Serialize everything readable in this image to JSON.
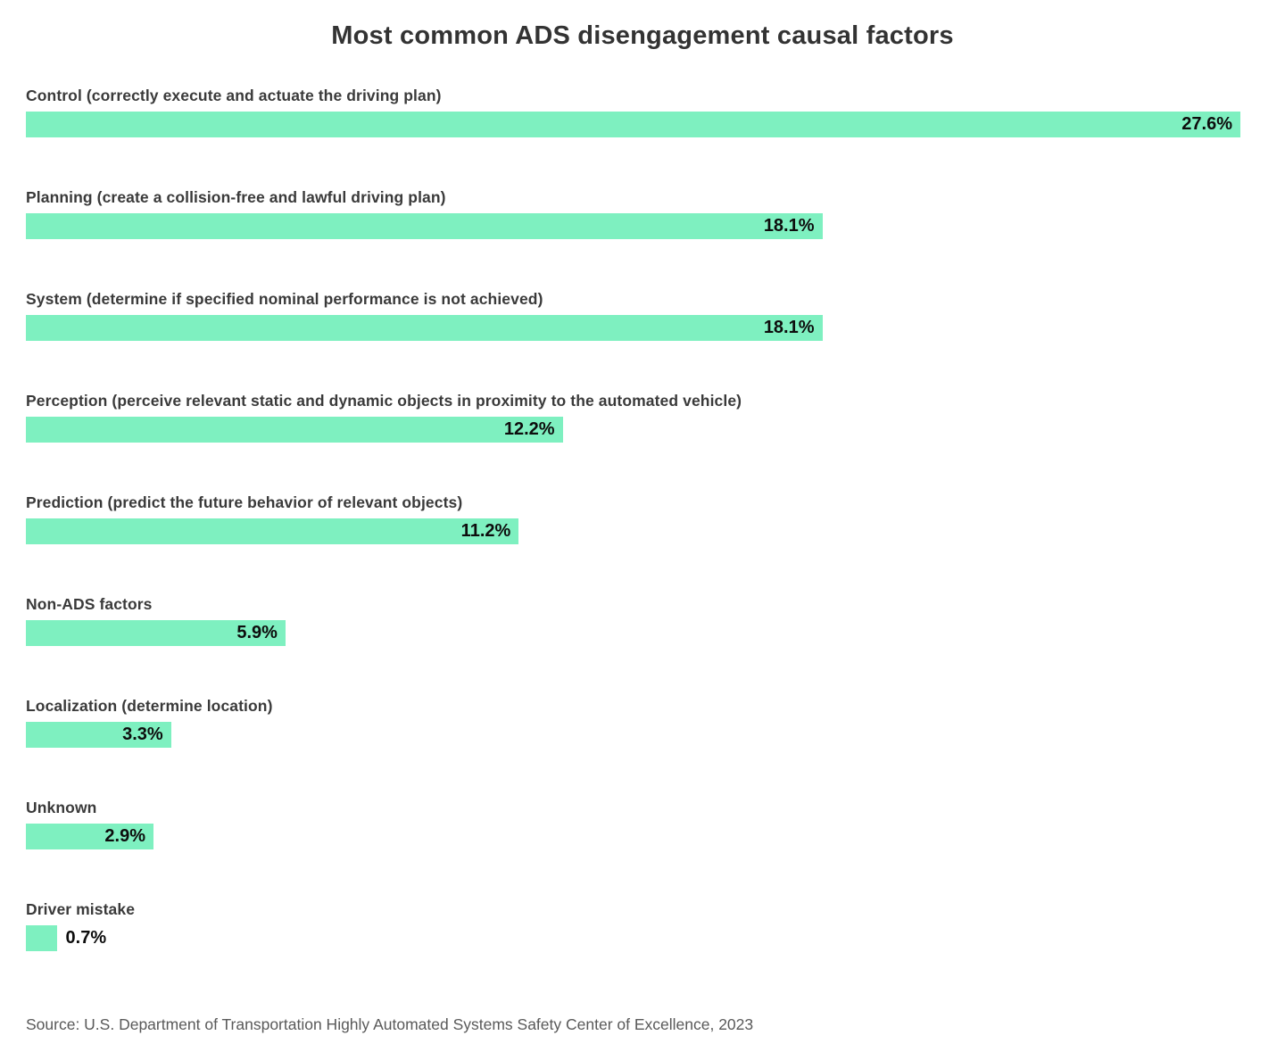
{
  "chart_data": {
    "type": "bar",
    "orientation": "horizontal",
    "title": "Most common ADS disengagement causal factors",
    "categories": [
      "Control (correctly execute and actuate the driving plan)",
      "Planning (create a collision-free and lawful driving plan)",
      "System (determine if specified nominal performance is not achieved)",
      "Perception (perceive relevant static and dynamic objects in proximity to the automated vehicle)",
      "Prediction (predict the future behavior of relevant objects)",
      "Non-ADS factors",
      "Localization (determine location)",
      "Unknown",
      "Driver mistake"
    ],
    "values": [
      27.6,
      18.1,
      18.1,
      12.2,
      11.2,
      5.9,
      3.3,
      2.9,
      0.7
    ],
    "value_labels": [
      "27.6%",
      "18.1%",
      "18.1%",
      "12.2%",
      "11.2%",
      "5.9%",
      "3.3%",
      "2.9%",
      "0.7%"
    ],
    "xlim": [
      0,
      27.6
    ],
    "grid": false,
    "legend": false,
    "bar_color": "#7EF0C0",
    "category_label_color": "#3a3a3a",
    "value_label_color": "#0d0d0d"
  },
  "source": "Source: U.S. Department of Transportation Highly Automated Systems Safety Center of Excellence, 2023"
}
